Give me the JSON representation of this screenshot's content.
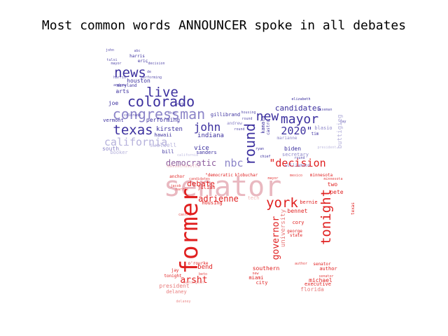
{
  "chart_data": {
    "type": "wordcloud",
    "title": "Most common words ANNOUNCER spoke in all debates",
    "colors": {
      "blue": "#3b2f9e",
      "blue_light": "#8c85c8",
      "blue_pale": "#b6b2dc",
      "purple": "#8f5f9e",
      "pink": "#e9b8c0",
      "red": "#e02020",
      "red_light": "#e87a7a",
      "red_pale": "#f1b8b8"
    },
    "words": [
      {
        "text": "senator",
        "color": "pink"
      },
      {
        "text": "former",
        "color": "red"
      },
      {
        "text": "congressman",
        "color": "blue_light"
      },
      {
        "text": "colorado",
        "color": "blue"
      },
      {
        "text": "texas",
        "color": "blue"
      },
      {
        "text": "news",
        "color": "blue"
      },
      {
        "text": "live",
        "color": "blue"
      },
      {
        "text": "california",
        "color": "blue_pale"
      },
      {
        "text": "new",
        "color": "blue"
      },
      {
        "text": "mayor",
        "color": "blue"
      },
      {
        "text": "2020\"",
        "color": "blue"
      },
      {
        "text": "round",
        "color": "blue"
      },
      {
        "text": "\"decision",
        "color": "red"
      },
      {
        "text": "john",
        "color": "blue"
      },
      {
        "text": "nbc",
        "color": "blue_light"
      },
      {
        "text": "democratic",
        "color": "purple"
      },
      {
        "text": "candidates",
        "color": "blue"
      },
      {
        "text": "york",
        "color": "red"
      },
      {
        "text": "tonight",
        "color": "red"
      },
      {
        "text": "governor",
        "color": "red"
      },
      {
        "text": "adrienne",
        "color": "red"
      },
      {
        "text": "arsht",
        "color": "red"
      },
      {
        "text": "debate",
        "color": "red"
      },
      {
        "text": "university",
        "color": "red_light"
      },
      {
        "text": "indiana",
        "color": "blue"
      },
      {
        "text": "vice",
        "color": "blue"
      },
      {
        "text": "kirsten",
        "color": "blue"
      },
      {
        "text": "biden",
        "color": "blue"
      },
      {
        "text": "secretary",
        "color": "blue_light"
      },
      {
        "text": "buttigieg",
        "color": "blue_pale"
      },
      {
        "text": "houston",
        "color": "blue"
      },
      {
        "text": "harris",
        "color": "blue"
      },
      {
        "text": "eric",
        "color": "blue"
      },
      {
        "text": "joe",
        "color": "blue"
      },
      {
        "text": "arts",
        "color": "blue"
      },
      {
        "text": "maryland",
        "color": "blue"
      },
      {
        "text": "performing",
        "color": "blue"
      },
      {
        "text": "hawaii",
        "color": "blue"
      },
      {
        "text": "bill",
        "color": "blue"
      },
      {
        "text": "sanders",
        "color": "blue"
      },
      {
        "text": "south",
        "color": "blue_light"
      },
      {
        "text": "booker",
        "color": "blue_pale"
      },
      {
        "text": "vermont",
        "color": "blue"
      },
      {
        "text": "gillibrand",
        "color": "blue"
      },
      {
        "text": "andrew",
        "color": "blue_light"
      },
      {
        "text": "kamala",
        "color": "blue"
      },
      {
        "text": "castro",
        "color": "blue"
      },
      {
        "text": "marianne",
        "color": "blue_light"
      },
      {
        "text": "williamson",
        "color": "blue_light"
      },
      {
        "text": "elizabeth",
        "color": "blue"
      },
      {
        "text": "chief",
        "color": "blue"
      },
      {
        "text": "ryan",
        "color": "blue"
      },
      {
        "text": "blasio",
        "color": "blue_light"
      },
      {
        "text": "tim",
        "color": "blue"
      },
      {
        "text": "swalwell",
        "color": "blue_pale"
      },
      {
        "text": "massachusetts",
        "color": "pink"
      },
      {
        "text": "bend",
        "color": "red"
      },
      {
        "text": "southern",
        "color": "red"
      },
      {
        "text": "miami",
        "color": "red"
      },
      {
        "text": "michael",
        "color": "red"
      },
      {
        "text": "executive",
        "color": "red"
      },
      {
        "text": "florida",
        "color": "red_light"
      },
      {
        "text": "president",
        "color": "red_light"
      },
      {
        "text": "delaney",
        "color": "red_light"
      },
      {
        "text": "author",
        "color": "red"
      },
      {
        "text": "senator",
        "color": "red"
      },
      {
        "text": "pete",
        "color": "red"
      },
      {
        "text": "two",
        "color": "red"
      },
      {
        "text": "cory",
        "color": "red"
      },
      {
        "text": "bernie",
        "color": "red"
      },
      {
        "text": "bennet",
        "color": "red"
      },
      {
        "text": "julian",
        "color": "red"
      },
      {
        "text": "housing",
        "color": "red"
      },
      {
        "text": "o'rourke",
        "color": "red"
      },
      {
        "text": "anchor",
        "color": "red"
      },
      {
        "text": "city",
        "color": "red"
      },
      {
        "text": "tech",
        "color": "red_pale"
      },
      {
        "text": "minnesota",
        "color": "red"
      },
      {
        "text": "klobuchar",
        "color": "red"
      },
      {
        "text": "\"democratic",
        "color": "red"
      },
      {
        "text": "george",
        "color": "red"
      },
      {
        "text": "state",
        "color": "red"
      },
      {
        "text": "texas",
        "color": "red"
      },
      {
        "text": "jay",
        "color": "red"
      },
      {
        "text": "tonight",
        "color": "red"
      }
    ]
  }
}
